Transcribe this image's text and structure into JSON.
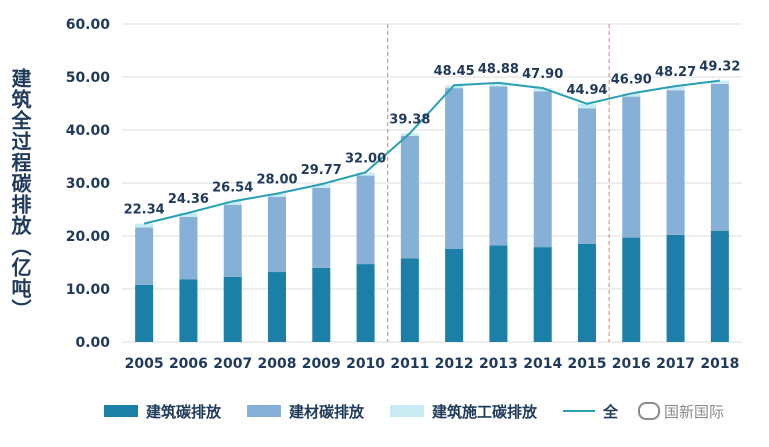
{
  "chart_data": {
    "type": "bar",
    "ylabel": "建筑全过程碳排放（亿吨）",
    "ylim": [
      0,
      60
    ],
    "yticks": [
      "0.00",
      "10.00",
      "20.00",
      "30.00",
      "40.00",
      "50.00",
      "60.00"
    ],
    "categories": [
      "2005",
      "2006",
      "2007",
      "2008",
      "2009",
      "2010",
      "2011",
      "2012",
      "2013",
      "2014",
      "2015",
      "2016",
      "2017",
      "2018"
    ],
    "stacked": true,
    "grid": true,
    "series": [
      {
        "name": "建筑碳排放",
        "color": "#1b7fa8",
        "values": [
          10.8,
          11.8,
          12.3,
          13.2,
          14.0,
          14.7,
          15.8,
          17.6,
          18.2,
          17.9,
          18.5,
          19.7,
          20.2,
          21.0
        ]
      },
      {
        "name": "建材碳排放",
        "color": "#86b0d6",
        "values": [
          10.8,
          11.8,
          13.6,
          14.2,
          15.1,
          16.7,
          23.1,
          30.3,
          30.0,
          29.4,
          25.6,
          26.6,
          27.3,
          27.7
        ]
      },
      {
        "name": "建筑施工碳排放",
        "color": "#c8ecf3",
        "values": [
          0.74,
          0.76,
          0.64,
          0.6,
          0.67,
          0.6,
          0.48,
          0.55,
          0.68,
          0.6,
          0.84,
          0.6,
          0.77,
          0.62
        ]
      },
      {
        "name": "全过程",
        "type": "line",
        "color": "#2a9fb5",
        "values": [
          22.34,
          24.36,
          26.54,
          28.0,
          29.77,
          32.0,
          39.38,
          48.45,
          48.88,
          47.9,
          44.94,
          46.9,
          48.27,
          49.32
        ]
      }
    ],
    "data_labels": [
      "22.34",
      "24.36",
      "26.54",
      "28.00",
      "29.77",
      "32.00",
      "39.38",
      "48.45",
      "48.88",
      "47.90",
      "44.94",
      "46.90",
      "48.27",
      "49.32"
    ],
    "dividers_after": [
      "2010",
      "2015"
    ]
  },
  "legend": {
    "items": [
      {
        "label": "建筑碳排放",
        "color": "#1b7fa8"
      },
      {
        "label": "建材碳排放",
        "color": "#86b0d6"
      },
      {
        "label": "建筑施工碳排放",
        "color": "#c8ecf3"
      }
    ],
    "line_label": "全"
  },
  "watermark": "国新国际"
}
